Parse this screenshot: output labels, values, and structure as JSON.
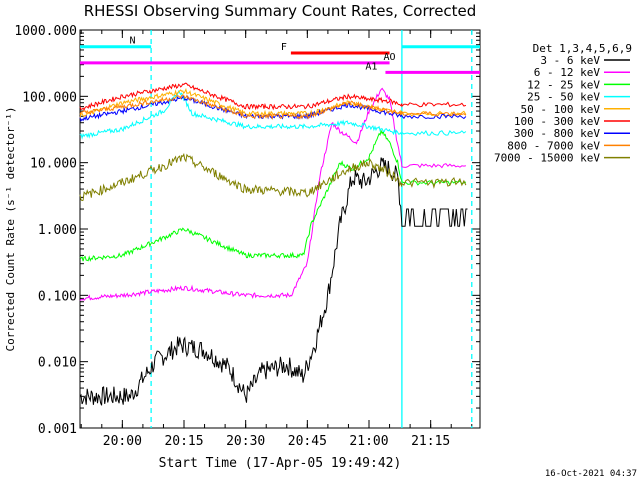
{
  "chart_data": {
    "type": "line",
    "title": "RHESSI Observing Summary Count Rates, Corrected",
    "xlabel": "Start Time (17-Apr-05 19:49:42)",
    "ylabel": "Corrected Count Rate (s⁻¹ detector⁻¹)",
    "yscale": "log",
    "ylim": [
      0.001,
      1000
    ],
    "xlim": [
      "19:49:42",
      "21:27:00"
    ],
    "y_ticks": [
      "0.001",
      "0.010",
      "0.100",
      "1.000",
      "10.000",
      "100.000",
      "1000.000"
    ],
    "x_ticks": [
      "20:00",
      "20:15",
      "20:30",
      "20:45",
      "21:00",
      "21:15"
    ],
    "footer_date": "16-Oct-2021 04:37",
    "legend_title": "Det 1,3,4,5,6,9",
    "legend_placement": "right",
    "grid": false,
    "series": [
      {
        "name": "3 - 6 keV",
        "color": "#000000",
        "times": [
          "19:49:42",
          "20:02",
          "20:08",
          "20:14",
          "20:20",
          "20:26",
          "20:30",
          "20:34",
          "20:40",
          "20:44",
          "20:47",
          "20:50",
          "20:53",
          "20:56",
          "20:59",
          "21:03",
          "21:05",
          "21:07",
          "21:08"
        ],
        "values": [
          0.003,
          0.003,
          0.01,
          0.018,
          0.015,
          0.008,
          0.003,
          0.007,
          0.009,
          0.006,
          0.02,
          0.1,
          1.2,
          6,
          5,
          9,
          8,
          6,
          1.5
        ]
      },
      {
        "name": "6 - 12 keV",
        "color": "#ff00ff",
        "times": [
          "19:49:42",
          "20:00",
          "20:15",
          "20:30",
          "20:41",
          "20:45",
          "20:48",
          "20:51",
          "20:53",
          "20:57",
          "21:00",
          "21:03",
          "21:05",
          "21:06",
          "21:08"
        ],
        "values": [
          0.09,
          0.1,
          0.13,
          0.1,
          0.1,
          0.3,
          6,
          40,
          30,
          20,
          60,
          130,
          90,
          40,
          9
        ]
      },
      {
        "name": "12 - 25 keV",
        "color": "#00ff00",
        "times": [
          "19:49:42",
          "20:00",
          "20:15",
          "20:30",
          "20:44",
          "20:46",
          "20:50",
          "20:53",
          "20:56",
          "21:00",
          "21:03",
          "21:05",
          "21:07",
          "21:08"
        ],
        "values": [
          0.35,
          0.4,
          1.0,
          0.4,
          0.4,
          1.2,
          4,
          10,
          8,
          12,
          30,
          20,
          10,
          5
        ]
      },
      {
        "name": "25 - 50 keV",
        "color": "#00ffff",
        "times": [
          "19:49:42",
          "20:00",
          "20:10",
          "20:14",
          "20:17",
          "20:30",
          "20:45",
          "20:55",
          "21:00",
          "21:05",
          "21:08"
        ],
        "values": [
          25,
          32,
          60,
          120,
          55,
          35,
          35,
          40,
          35,
          30,
          28
        ]
      },
      {
        "name": "50 - 100 keV",
        "color": "#ffb000",
        "times": [
          "19:49:42",
          "20:00",
          "20:15",
          "20:30",
          "20:45",
          "20:55",
          "21:00",
          "21:05",
          "21:08"
        ],
        "values": [
          50,
          80,
          120,
          55,
          55,
          80,
          70,
          60,
          55
        ]
      },
      {
        "name": "100 - 300 keV",
        "color": "#ff0000",
        "times": [
          "19:49:42",
          "20:00",
          "20:15",
          "20:30",
          "20:45",
          "20:55",
          "21:00",
          "21:05",
          "21:08"
        ],
        "values": [
          65,
          100,
          150,
          70,
          70,
          100,
          90,
          85,
          75
        ]
      },
      {
        "name": "300 - 800 keV",
        "color": "#0000ff",
        "times": [
          "19:49:42",
          "20:00",
          "20:15",
          "20:30",
          "20:45",
          "20:55",
          "21:00",
          "21:05",
          "21:08"
        ],
        "values": [
          45,
          60,
          95,
          50,
          50,
          75,
          65,
          55,
          50
        ]
      },
      {
        "name": "800 - 7000 keV",
        "color": "#ff8000",
        "times": [
          "19:49:42",
          "20:00",
          "20:15",
          "20:30",
          "20:45",
          "20:55",
          "21:00",
          "21:05",
          "21:08"
        ],
        "values": [
          55,
          70,
          100,
          50,
          50,
          80,
          70,
          60,
          55
        ]
      },
      {
        "name": "7000 - 15000 keV",
        "color": "#808000",
        "times": [
          "19:49:42",
          "20:00",
          "20:15",
          "20:30",
          "20:45",
          "20:55",
          "21:00",
          "21:05",
          "21:08"
        ],
        "values": [
          3,
          5,
          12,
          4,
          3.5,
          8,
          10,
          7,
          5
        ]
      }
    ],
    "annotations": [
      {
        "label": "N",
        "color": "#00ffff",
        "start": "19:49:42",
        "end": "20:07",
        "y": 560
      },
      {
        "label": "",
        "color": "#00ffff",
        "start": "21:08",
        "end": "21:27",
        "y": 560
      },
      {
        "label": "F",
        "color": "#ff0000",
        "start": "20:41",
        "end": "21:05",
        "y": 450
      },
      {
        "label": "AO",
        "color": "#ff00ff",
        "start": "19:49:42",
        "end": "21:05",
        "y": 320
      },
      {
        "label": "A1",
        "color": "#ff00ff",
        "start": "21:04",
        "end": "21:27",
        "y": 230
      }
    ],
    "vertical_markers": [
      {
        "time": "20:07",
        "color": "#00ffff",
        "style": "dashed"
      },
      {
        "time": "21:08",
        "color": "#00ffff",
        "style": "solid"
      },
      {
        "time": "21:25",
        "color": "#00ffff",
        "style": "dashed"
      }
    ]
  }
}
